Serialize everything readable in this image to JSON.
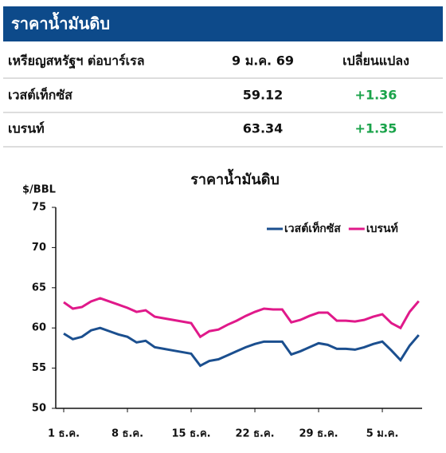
{
  "header": {
    "title": "ราคาน้ำมันดิบ"
  },
  "table": {
    "columns": [
      "เหรียญสหรัฐฯ ต่อบาร์เรล",
      "9 ม.ค. 69",
      "เปลี่ยนแปลง"
    ],
    "rows": [
      [
        "เวสต์เท็กซัส",
        "59.12",
        "+1.36"
      ],
      [
        "เบรนท์",
        "63.34",
        "+1.35"
      ]
    ]
  },
  "chart_data": {
    "type": "line",
    "title": "ราคาน้ำมันดิบ",
    "y_label": "$/BBL",
    "categories": [
      "1 ธ.ค.",
      null,
      null,
      null,
      null,
      null,
      null,
      "8 ธ.ค.",
      null,
      null,
      null,
      null,
      null,
      null,
      "15 ธ.ค.",
      null,
      null,
      null,
      null,
      null,
      null,
      "22 ธ.ค.",
      null,
      null,
      null,
      null,
      null,
      null,
      "29 ธ.ค.",
      null,
      null,
      null,
      null,
      null,
      null,
      "5 ม.ค.",
      null,
      null,
      null,
      null
    ],
    "series": [
      {
        "name": "เวสต์เท็กซัส",
        "color": "#1b4f8f",
        "values": [
          59.3,
          58.6,
          58.9,
          59.7,
          60.0,
          59.6,
          59.2,
          58.9,
          58.2,
          58.4,
          57.6,
          57.4,
          57.2,
          57.0,
          56.8,
          55.3,
          55.9,
          56.1,
          56.6,
          57.1,
          57.6,
          58.0,
          58.3,
          58.3,
          58.3,
          56.7,
          57.1,
          57.6,
          58.1,
          57.9,
          57.4,
          57.4,
          57.3,
          57.6,
          58.0,
          58.3,
          57.2,
          56.0,
          57.8,
          59.12
        ]
      },
      {
        "name": "เบรนท์",
        "color": "#e0198a",
        "values": [
          63.2,
          62.4,
          62.6,
          63.3,
          63.7,
          63.3,
          62.9,
          62.5,
          62.0,
          62.2,
          61.4,
          61.2,
          61.0,
          60.8,
          60.6,
          58.9,
          59.6,
          59.8,
          60.4,
          60.9,
          61.5,
          62.0,
          62.4,
          62.3,
          62.3,
          60.7,
          61.0,
          61.5,
          61.9,
          61.9,
          60.9,
          60.9,
          60.8,
          61.0,
          61.4,
          61.7,
          60.6,
          60.0,
          62.0,
          63.34
        ]
      }
    ],
    "ylim": [
      50,
      75
    ],
    "yticks": [
      50,
      55,
      60,
      65,
      70,
      75
    ],
    "legend": "top-right"
  }
}
